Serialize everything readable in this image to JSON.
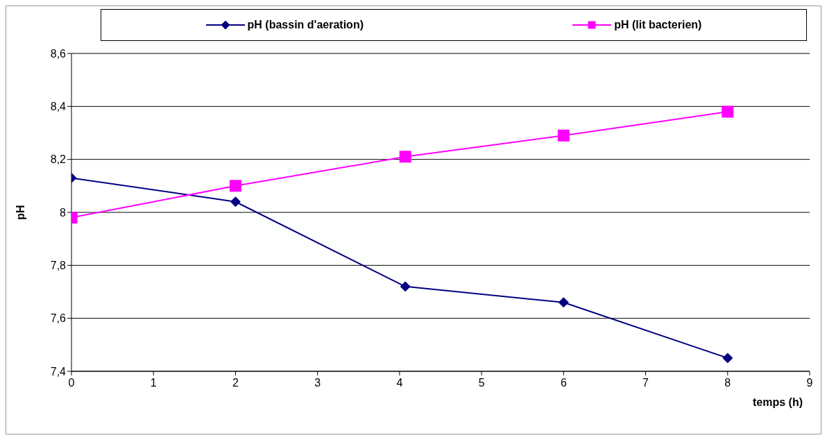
{
  "chart_data": {
    "type": "line",
    "xlabel": "temps (h)",
    "ylabel": "pH",
    "series": [
      {
        "name": "pH (bassin d'aeration)",
        "color": "#000080",
        "marker": "diamond",
        "x": [
          0,
          2,
          4.07,
          6,
          8
        ],
        "values": [
          8.13,
          8.04,
          7.72,
          7.66,
          7.45
        ]
      },
      {
        "name": "pH (lit bacterien)",
        "color": "#ff00ff",
        "marker": "square",
        "x": [
          0,
          2,
          4.07,
          6,
          8
        ],
        "values": [
          7.98,
          8.1,
          8.21,
          8.29,
          8.38
        ]
      }
    ],
    "xlim": [
      0,
      9
    ],
    "xticks": [
      0,
      1,
      2,
      3,
      4,
      5,
      6,
      7,
      8,
      9
    ],
    "ylim": [
      7.4,
      8.6
    ],
    "yticks": [
      {
        "value": 7.4,
        "label": "7,4"
      },
      {
        "value": 7.6,
        "label": "7,6"
      },
      {
        "value": 7.8,
        "label": "7,8"
      },
      {
        "value": 8,
        "label": "8"
      },
      {
        "value": 8.2,
        "label": "8,2"
      },
      {
        "value": 8.4,
        "label": "8,4"
      },
      {
        "value": 8.6,
        "label": "8,6"
      }
    ],
    "grid": "y",
    "legend": "top",
    "line_style": "solid"
  }
}
